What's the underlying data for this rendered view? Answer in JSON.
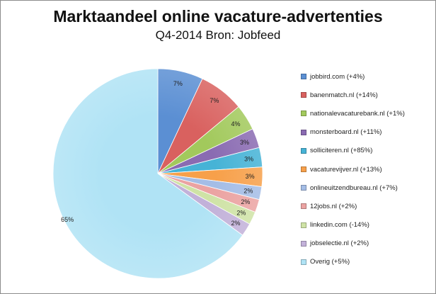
{
  "chart_data": {
    "type": "pie",
    "title": "Marktaandeel online vacature-advertenties",
    "subtitle": "Q4-2014 Bron: Jobfeed",
    "legend_position": "right",
    "slices": [
      {
        "label": "jobbird.com (+4%)",
        "value": 7,
        "display": "7%",
        "color": "#5b8fd3"
      },
      {
        "label": "banenmatch.nl (+14%)",
        "value": 7,
        "display": "7%",
        "color": "#d9615f"
      },
      {
        "label": "nationalevacaturebank.nl (+1%)",
        "value": 4,
        "display": "4%",
        "color": "#a2c95c"
      },
      {
        "label": "monsterboard.nl (+11%)",
        "value": 3,
        "display": "3%",
        "color": "#8a6bb2"
      },
      {
        "label": "solliciteren.nl (+85%)",
        "value": 3,
        "display": "3%",
        "color": "#46b3d6"
      },
      {
        "label": "vacaturevijver.nl (+13%)",
        "value": 3,
        "display": "3%",
        "color": "#f7a04a"
      },
      {
        "label": "onlineuitzendbureau.nl (+7%)",
        "value": 2,
        "display": "2%",
        "color": "#a4bde6"
      },
      {
        "label": "12jobs.nl (+2%)",
        "value": 2,
        "display": "2%",
        "color": "#eba3a2"
      },
      {
        "label": "linkedin.com (-14%)",
        "value": 2,
        "display": "2%",
        "color": "#cfe3a6"
      },
      {
        "label": "jobselectie.nl (+2%)",
        "value": 2,
        "display": "2%",
        "color": "#c2b1d9"
      },
      {
        "label": "Overig (+5%)",
        "value": 65,
        "display": "65%",
        "color": "#b0e3f5"
      }
    ]
  }
}
